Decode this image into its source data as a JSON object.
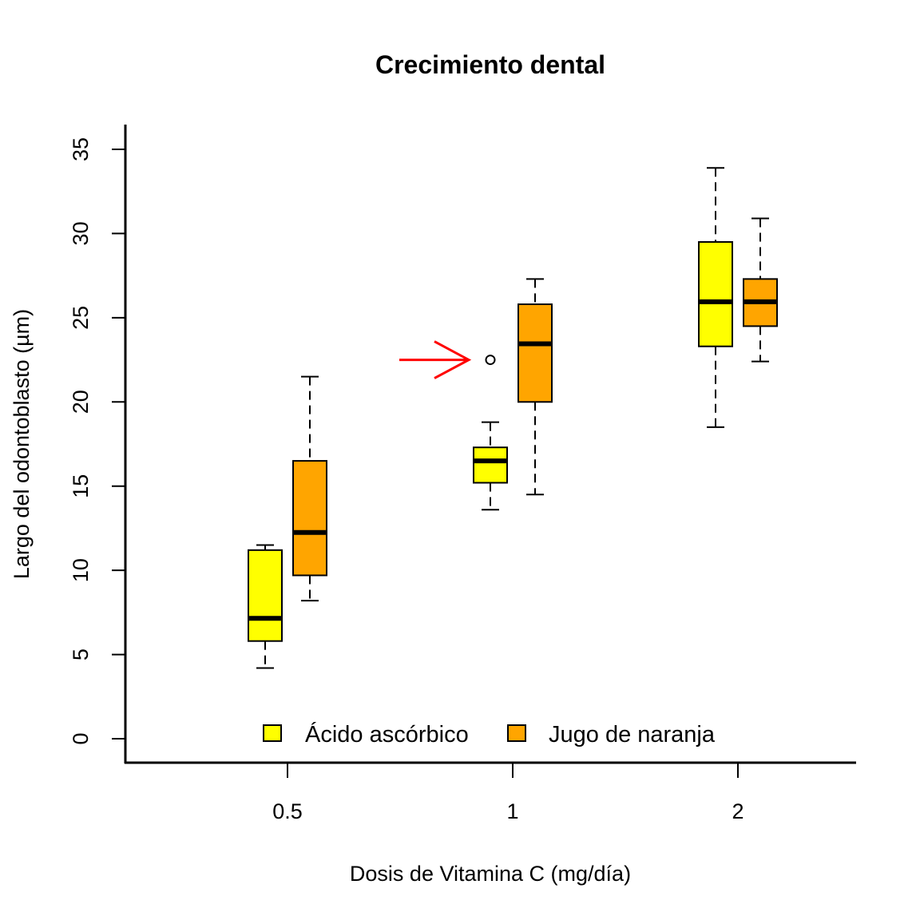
{
  "chart_data": {
    "type": "boxplot",
    "title": "Crecimiento dental",
    "xlabel": "Dosis de Vitamina C (mg/día)",
    "ylabel": "Largo del odontoblasto (µm)",
    "ylim": [
      0,
      35
    ],
    "yticks": [
      "0",
      "5",
      "10",
      "15",
      "20",
      "25",
      "30",
      "35"
    ],
    "ytick_values": [
      0,
      5,
      10,
      15,
      20,
      25,
      30,
      35
    ],
    "categories": [
      "0.5",
      "1",
      "2"
    ],
    "legend": {
      "placement": "bottom",
      "entries": [
        {
          "label": "Ácido ascórbico",
          "color": "#ffff00"
        },
        {
          "label": "Jugo de naranja",
          "color": "#ffa500"
        }
      ]
    },
    "series": [
      {
        "name": "Ácido ascórbico",
        "color": "#ffff00",
        "boxes": [
          {
            "category": "0.5",
            "min": 4.2,
            "q1": 5.8,
            "median": 7.15,
            "q3": 11.2,
            "max": 11.5,
            "outliers": []
          },
          {
            "category": "1",
            "min": 13.6,
            "q1": 15.2,
            "median": 16.5,
            "q3": 17.3,
            "max": 18.8,
            "outliers": [
              22.5
            ]
          },
          {
            "category": "2",
            "min": 18.5,
            "q1": 23.3,
            "median": 25.95,
            "q3": 29.5,
            "max": 33.9,
            "outliers": []
          }
        ]
      },
      {
        "name": "Jugo de naranja",
        "color": "#ffa500",
        "boxes": [
          {
            "category": "0.5",
            "min": 8.2,
            "q1": 9.7,
            "median": 12.25,
            "q3": 16.5,
            "max": 21.5,
            "outliers": []
          },
          {
            "category": "1",
            "min": 14.5,
            "q1": 20.0,
            "median": 23.45,
            "q3": 25.8,
            "max": 27.3,
            "outliers": []
          },
          {
            "category": "2",
            "min": 22.4,
            "q1": 24.5,
            "median": 25.95,
            "q3": 27.3,
            "max": 30.9,
            "outliers": []
          }
        ]
      }
    ],
    "annotations": [
      {
        "type": "arrow",
        "color": "#ff0000",
        "points_to": "outlier",
        "category": "1",
        "value": 22.5
      }
    ]
  }
}
